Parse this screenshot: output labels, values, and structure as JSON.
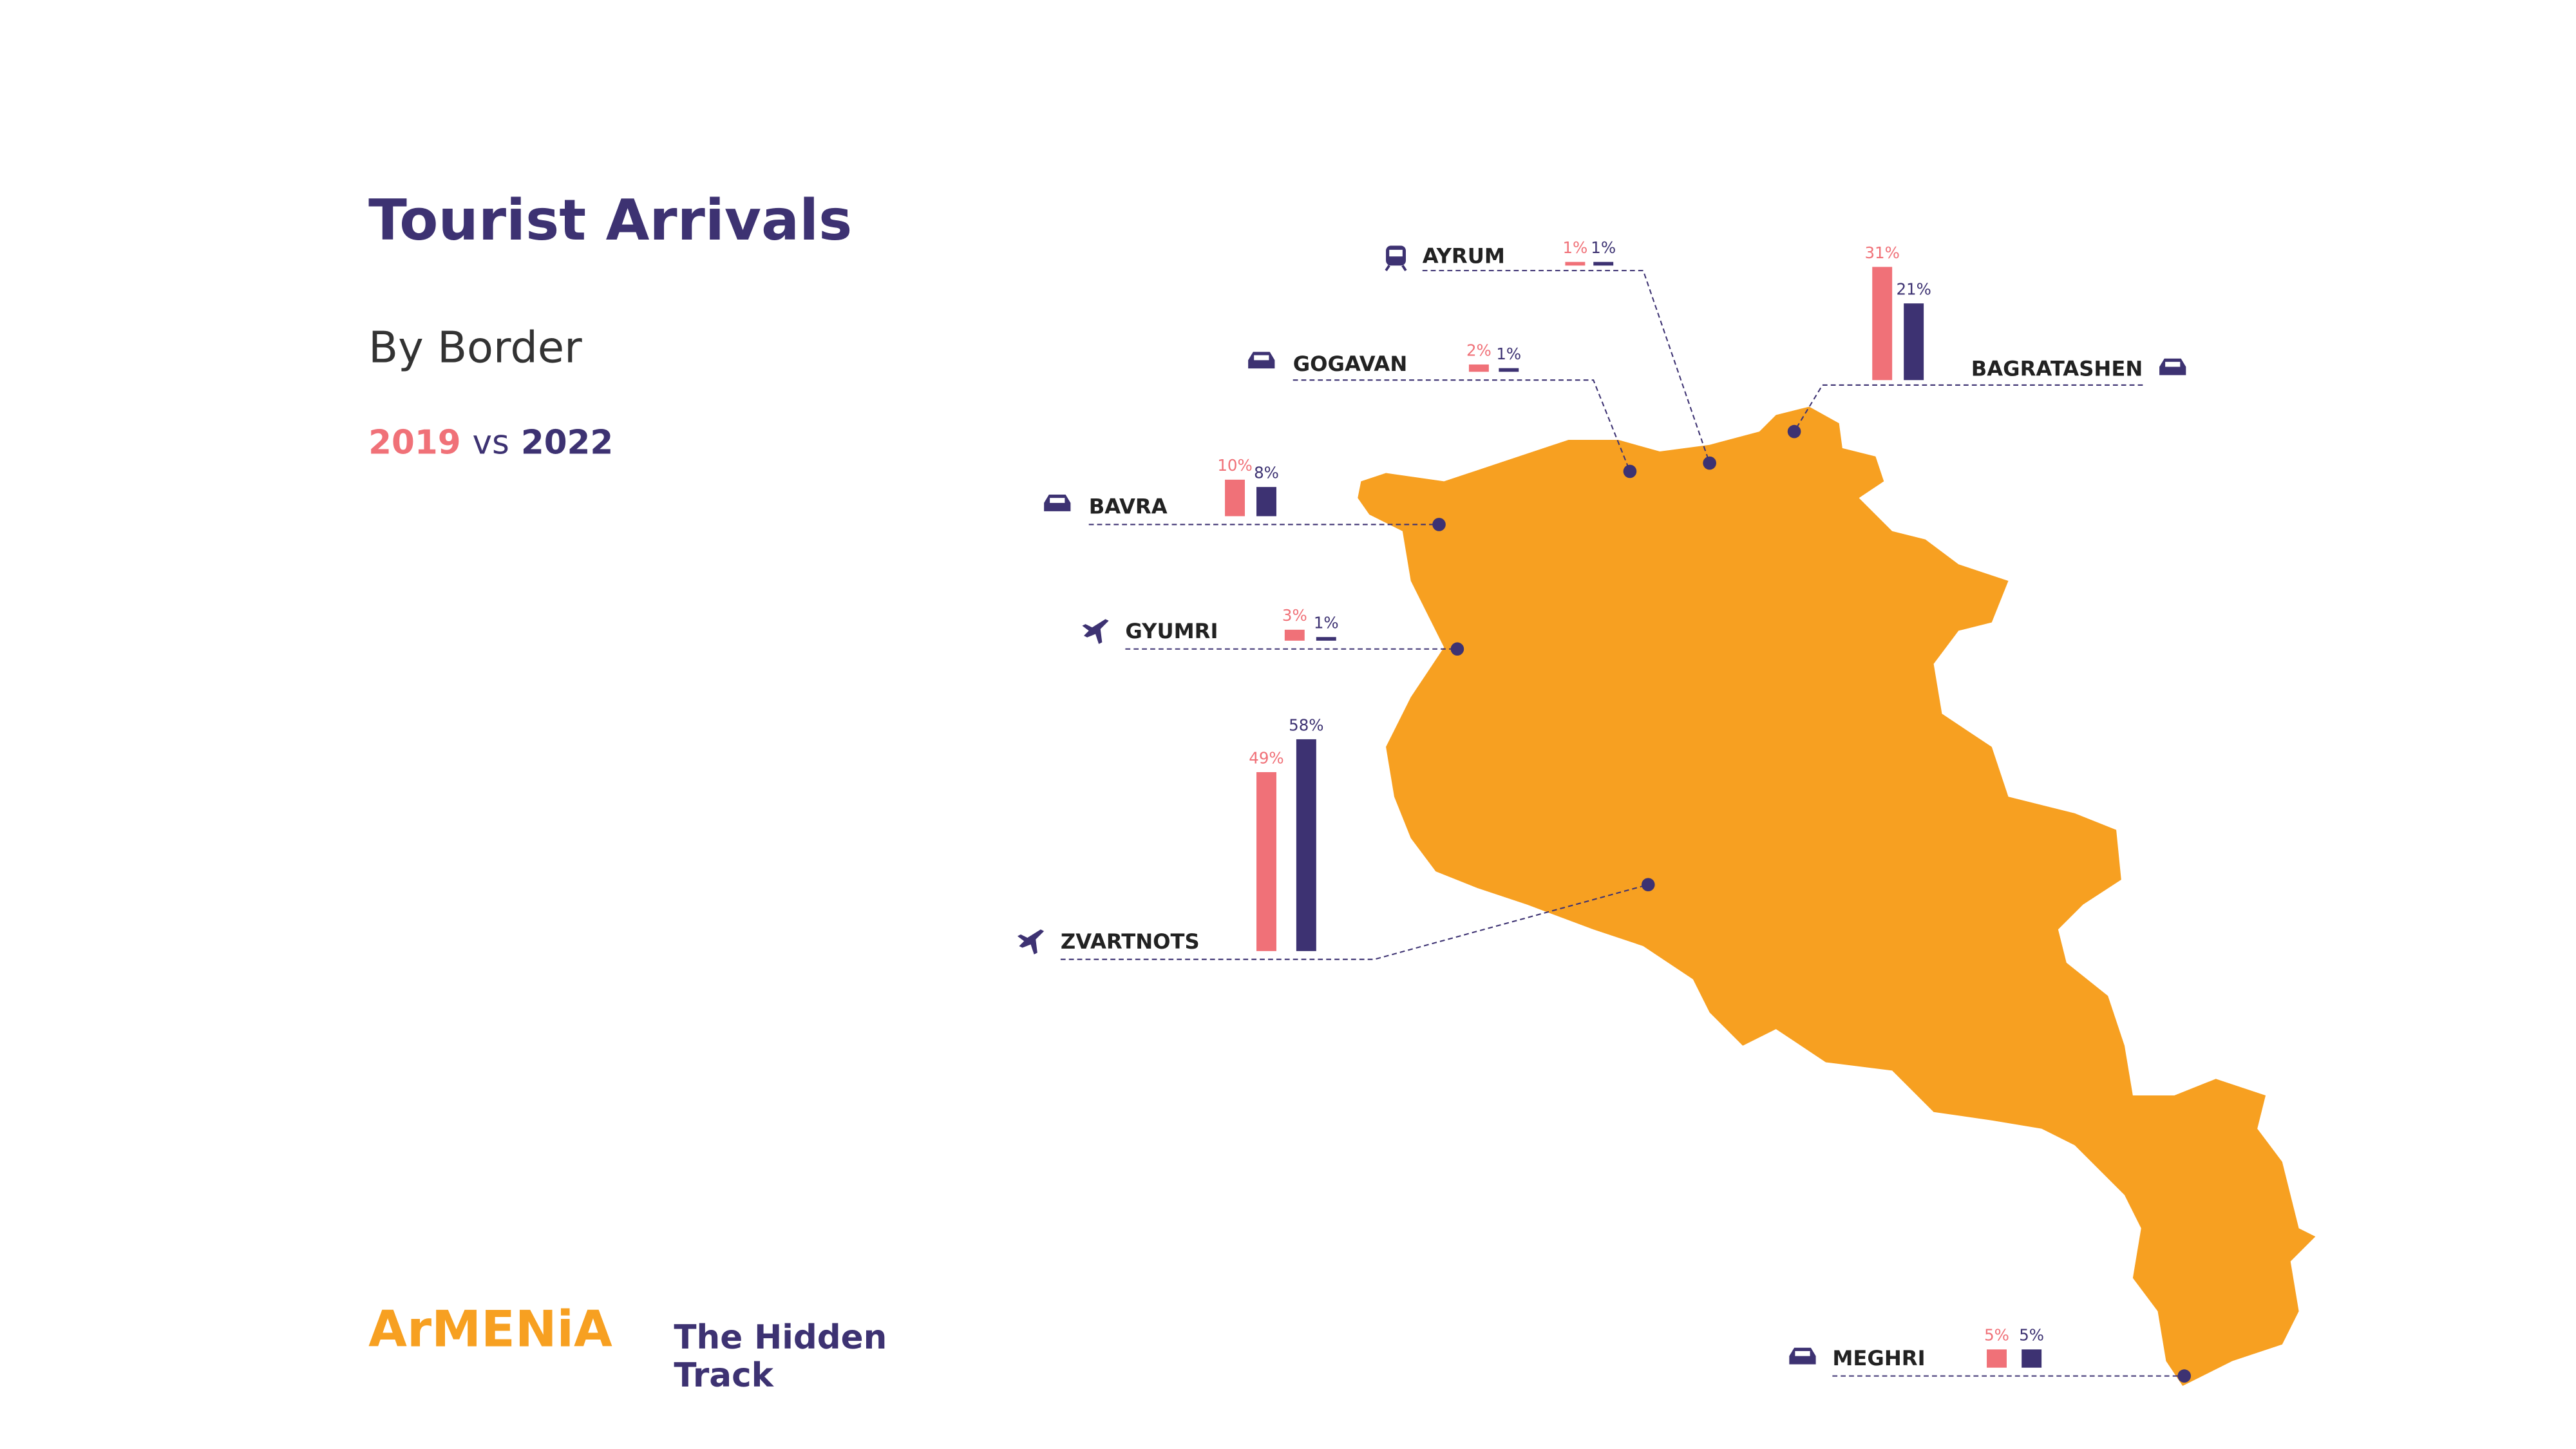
{
  "header": {
    "title": "Tourist Arrivals",
    "subtitle": "By Border"
  },
  "series": [
    {
      "name": "2019",
      "color": "#f07178"
    },
    {
      "name": "2022",
      "color": "#3d3272"
    }
  ],
  "connector": "vs",
  "map": {
    "color": "#f7a021"
  },
  "borders": [
    {
      "name": "AYRUM",
      "transport": "rail",
      "values": [
        1,
        1
      ],
      "value_labels": [
        "1%",
        "1%"
      ]
    },
    {
      "name": "GOGAVAN",
      "transport": "car",
      "values": [
        2,
        1
      ],
      "value_labels": [
        "2%",
        "1%"
      ]
    },
    {
      "name": "BAGRATASHEN",
      "transport": "car",
      "values": [
        31,
        21
      ],
      "value_labels": [
        "31%",
        "21%"
      ]
    },
    {
      "name": "BAVRA",
      "transport": "car",
      "values": [
        10,
        8
      ],
      "value_labels": [
        "10%",
        "8%"
      ]
    },
    {
      "name": "GYUMRI",
      "transport": "air",
      "values": [
        3,
        1
      ],
      "value_labels": [
        "3%",
        "1%"
      ]
    },
    {
      "name": "ZVARTNOTS",
      "transport": "air",
      "values": [
        49,
        58
      ],
      "value_labels": [
        "49%",
        "58%"
      ]
    },
    {
      "name": "MEGHRI",
      "transport": "car",
      "values": [
        5,
        5
      ],
      "value_labels": [
        "5%",
        "5%"
      ]
    }
  ],
  "logo": {
    "brand": "ArMENiA",
    "tagline": [
      "The Hidden",
      "Track"
    ]
  }
}
